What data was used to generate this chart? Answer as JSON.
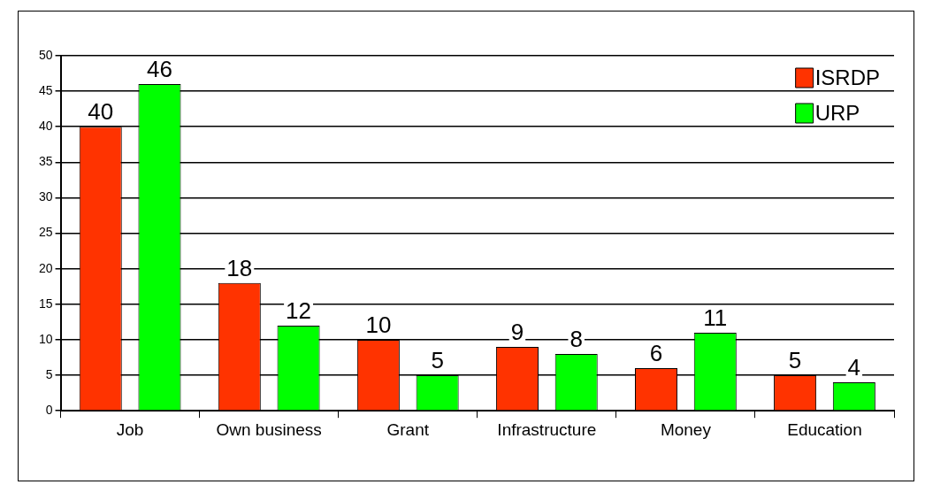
{
  "chart_data": {
    "type": "bar",
    "categories": [
      "Job",
      "Own business",
      "Grant",
      "Infrastructure",
      "Money",
      "Education"
    ],
    "series": [
      {
        "name": "ISRDP",
        "color": "#ff3300",
        "values": [
          40,
          18,
          10,
          9,
          6,
          5
        ]
      },
      {
        "name": "URP",
        "color": "#00ff00",
        "values": [
          46,
          12,
          5,
          8,
          11,
          4
        ]
      }
    ],
    "ylim": [
      0,
      50
    ],
    "yticks": [
      0,
      5,
      10,
      15,
      20,
      25,
      30,
      35,
      40,
      45,
      50
    ],
    "grid": "y",
    "legend": "top right",
    "data_labels": true
  }
}
